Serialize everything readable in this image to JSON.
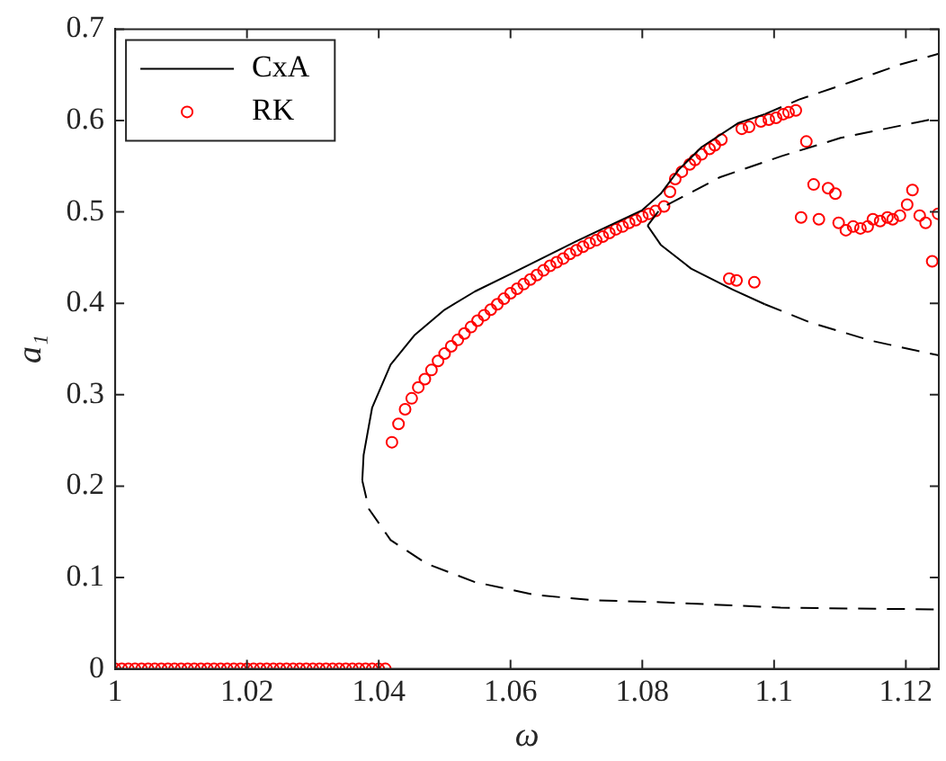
{
  "chart_data": {
    "type": "line",
    "xlabel": "ω",
    "ylabel": "a₁",
    "xlim": [
      1,
      1.125
    ],
    "xticks": [
      1,
      1.02,
      1.04,
      1.06,
      1.08,
      1.1,
      1.12
    ],
    "ylim": [
      0,
      0.7
    ],
    "yticks": [
      0,
      0.1,
      0.2,
      0.3,
      0.4,
      0.5,
      0.6,
      0.7
    ],
    "grid": false,
    "legend": "top left",
    "series": [
      {
        "name": "CxA",
        "type": "line",
        "color": "#000000",
        "line_style": "solid",
        "marker": "none",
        "x": [
          1.0375,
          1.0377,
          1.039,
          1.0418,
          1.0454,
          1.05,
          1.0546,
          1.06,
          1.07,
          1.08,
          1.0828,
          1.0855,
          1.089,
          1.0945,
          1.0986
        ],
        "values": [
          0.206,
          0.234,
          0.286,
          0.333,
          0.365,
          0.393,
          0.413,
          0.432,
          0.468,
          0.502,
          0.52,
          0.546,
          0.571,
          0.597,
          0.607
        ]
      },
      {
        "type": "line",
        "color": "#000000",
        "line_style": "dashed",
        "marker": "none",
        "x": [
          1.0986,
          1.1038,
          1.112,
          1.119,
          1.125
        ],
        "values": [
          0.607,
          0.623,
          0.643,
          0.661,
          0.673
        ]
      },
      {
        "type": "line",
        "color": "#000000",
        "line_style": "dashed",
        "marker": "none",
        "x": [
          1.0375,
          1.0385,
          1.0418,
          1.0473,
          1.0546,
          1.0637,
          1.0727,
          1.0828,
          1.101,
          1.125
        ],
        "values": [
          0.206,
          0.175,
          0.141,
          0.115,
          0.095,
          0.081,
          0.075,
          0.073,
          0.067,
          0.065
        ]
      },
      {
        "type": "line",
        "color": "#000000",
        "line_style": "dashed",
        "marker": "none",
        "x": [
          1.0808,
          1.0828,
          1.0918,
          1.1011,
          1.1101,
          1.125
        ],
        "values": [
          0.485,
          0.504,
          0.538,
          0.561,
          0.581,
          0.603
        ]
      },
      {
        "type": "line",
        "color": "#000000",
        "line_style": "solid",
        "marker": "none",
        "x": [
          1.0808,
          1.0828,
          1.0874,
          1.0937,
          1.0986
        ],
        "values": [
          0.485,
          0.464,
          0.438,
          0.415,
          0.399
        ]
      },
      {
        "type": "line",
        "color": "#000000",
        "line_style": "dashed",
        "marker": "none",
        "x": [
          1.0986,
          1.1055,
          1.1148,
          1.125
        ],
        "values": [
          0.399,
          0.379,
          0.359,
          0.343
        ]
      },
      {
        "name": "RK",
        "type": "scatter",
        "color": "#ff0000",
        "marker": "circle",
        "x": [
          1,
          1.001,
          1.002,
          1.003,
          1.004,
          1.005,
          1.006,
          1.007,
          1.008,
          1.009,
          1.01,
          1.011,
          1.012,
          1.013,
          1.014,
          1.015,
          1.016,
          1.017,
          1.018,
          1.019,
          1.02,
          1.021,
          1.022,
          1.023,
          1.024,
          1.025,
          1.026,
          1.027,
          1.028,
          1.029,
          1.03,
          1.031,
          1.032,
          1.033,
          1.034,
          1.035,
          1.036,
          1.037,
          1.038,
          1.039,
          1.04,
          1.041,
          1.042,
          1.043,
          1.044,
          1.045,
          1.046,
          1.047,
          1.048,
          1.049,
          1.05,
          1.051,
          1.052,
          1.053,
          1.054,
          1.055,
          1.056,
          1.057,
          1.058,
          1.059,
          1.06,
          1.061,
          1.062,
          1.063,
          1.064,
          1.065,
          1.066,
          1.067,
          1.068,
          1.069,
          1.07,
          1.071,
          1.072,
          1.073,
          1.074,
          1.075,
          1.076,
          1.077,
          1.078,
          1.079,
          1.08,
          1.081,
          1.082,
          1.0833,
          1.0842,
          1.085,
          1.086,
          1.0872,
          1.088,
          1.089,
          1.0902,
          1.091,
          1.092,
          1.0951,
          1.0962,
          1.098,
          1.0992,
          1.1003,
          1.1014,
          1.1022,
          1.1033,
          1.1049,
          1.106,
          1.1082,
          1.1093,
          1.1041,
          1.1068,
          1.1098,
          1.1109,
          1.112,
          1.1131,
          1.1142,
          1.115,
          1.1161,
          1.1172,
          1.118,
          1.1191,
          1.1202,
          1.121,
          1.1221,
          1.123,
          1.124,
          1.1249,
          1.0932,
          1.0943,
          1.097
        ],
        "values": [
          0,
          0,
          0,
          0,
          0,
          0,
          0,
          0,
          0,
          0,
          0,
          0,
          0,
          0,
          0,
          0,
          0,
          0,
          0,
          0,
          0,
          0,
          0,
          0,
          0,
          0,
          0,
          0,
          0,
          0,
          0,
          0,
          0,
          0,
          0,
          0,
          0,
          0,
          0,
          0,
          0,
          0,
          0.248,
          0.268,
          0.284,
          0.296,
          0.308,
          0.317,
          0.327,
          0.337,
          0.345,
          0.353,
          0.36,
          0.367,
          0.374,
          0.381,
          0.387,
          0.393,
          0.399,
          0.405,
          0.411,
          0.416,
          0.421,
          0.426,
          0.431,
          0.436,
          0.441,
          0.445,
          0.449,
          0.454,
          0.458,
          0.462,
          0.466,
          0.469,
          0.473,
          0.477,
          0.481,
          0.484,
          0.488,
          0.491,
          0.495,
          0.498,
          0.501,
          0.506,
          0.522,
          0.536,
          0.544,
          0.552,
          0.557,
          0.563,
          0.569,
          0.573,
          0.579,
          0.591,
          0.593,
          0.599,
          0.601,
          0.603,
          0.607,
          0.609,
          0.611,
          0.577,
          0.53,
          0.526,
          0.52,
          0.494,
          0.492,
          0.488,
          0.48,
          0.484,
          0.482,
          0.484,
          0.492,
          0.49,
          0.494,
          0.492,
          0.496,
          0.508,
          0.524,
          0.496,
          0.488,
          0.446,
          0.498,
          0.427,
          0.425,
          0.423
        ]
      }
    ]
  }
}
